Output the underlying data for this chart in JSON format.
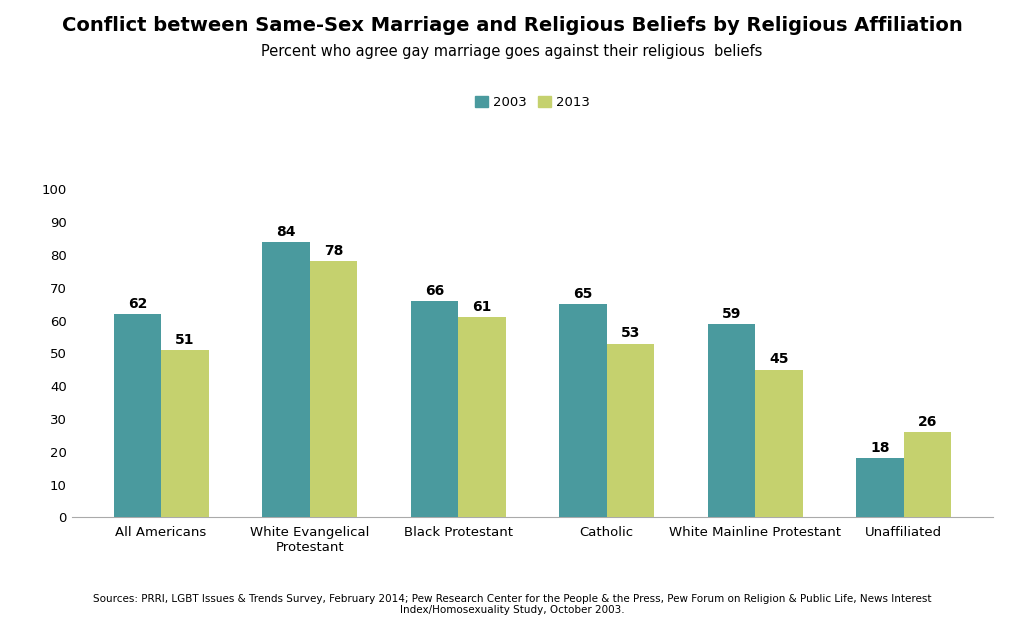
{
  "title": "Conflict between Same-Sex Marriage and Religious Beliefs by Religious Affiliation",
  "subtitle": "Percent who agree gay marriage goes against their religious  beliefs",
  "categories": [
    "All Americans",
    "White Evangelical\nProtestant",
    "Black Protestant",
    "Catholic",
    "White Mainline Protestant",
    "Unaffiliated"
  ],
  "values_2003": [
    62,
    84,
    66,
    65,
    59,
    18
  ],
  "values_2013": [
    51,
    78,
    61,
    53,
    45,
    26
  ],
  "color_2003": "#4a9a9e",
  "color_2013": "#c5d16e",
  "legend_labels": [
    "2003",
    "2013"
  ],
  "ylim": [
    0,
    100
  ],
  "yticks": [
    0,
    10,
    20,
    30,
    40,
    50,
    60,
    70,
    80,
    90,
    100
  ],
  "footnote": "Sources: PRRI, LGBT Issues & Trends Survey, February 2014; Pew Research Center for the People & the Press, Pew Forum on Religion & Public Life, News Interest\nIndex/Homosexuality Study, October 2003.",
  "bar_width": 0.32,
  "title_fontsize": 14,
  "subtitle_fontsize": 10.5,
  "tick_fontsize": 9.5,
  "label_fontsize": 10,
  "footnote_fontsize": 7.5,
  "background_color": "#ffffff"
}
